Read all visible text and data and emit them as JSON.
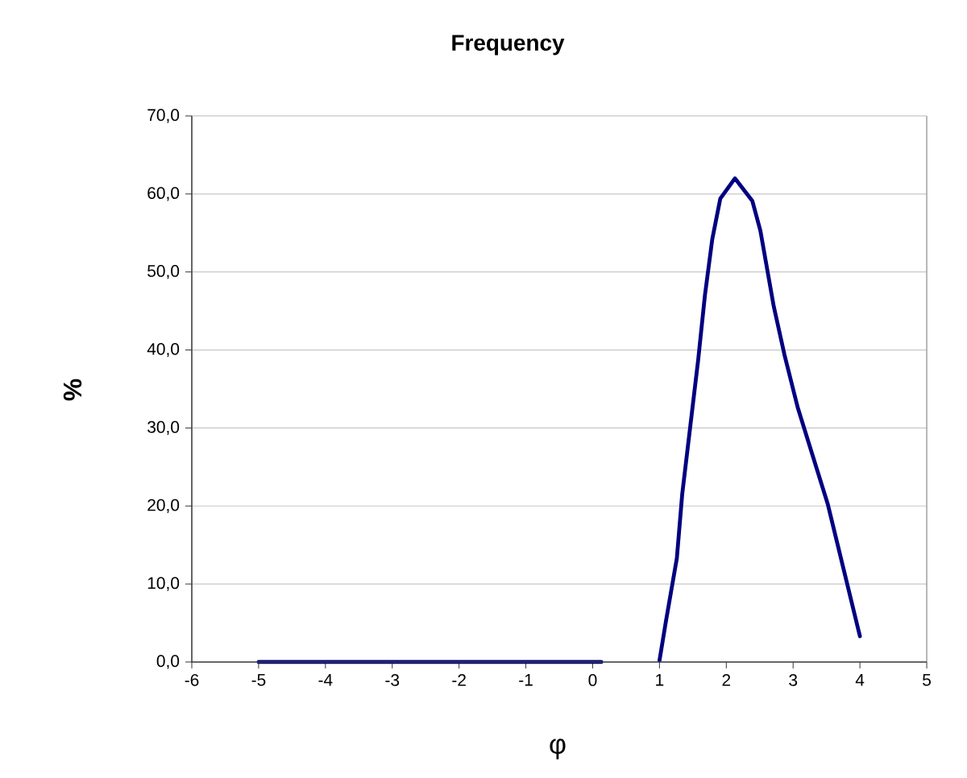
{
  "chart_data": {
    "type": "line",
    "title": "Frequency",
    "xlabel": "φ",
    "ylabel": "%",
    "x": [
      -5,
      -4,
      -3,
      -2,
      -1,
      0,
      0.13,
      null,
      1.0,
      1.1,
      1.26,
      1.34,
      1.58,
      1.68,
      1.79,
      1.91,
      2.13,
      2.39,
      2.51,
      2.71,
      2.87,
      3.07,
      3.52,
      4.0
    ],
    "series": [
      {
        "color": "#000080",
        "values": [
          0,
          0,
          0,
          0,
          0,
          0,
          0,
          null,
          0.2,
          5.4,
          13.3,
          21.5,
          38.8,
          47.0,
          54.2,
          59.4,
          62.0,
          59.1,
          55.3,
          45.6,
          39.4,
          32.6,
          20.2,
          3.3
        ]
      }
    ],
    "xlim": [
      -6,
      5
    ],
    "xticks": [
      -6,
      -5,
      -4,
      -3,
      -2,
      -1,
      0,
      1,
      2,
      3,
      4,
      5
    ],
    "ylim": [
      0,
      70
    ],
    "yticks": [
      {
        "value": 0,
        "label": "0,0"
      },
      {
        "value": 10,
        "label": "10,0"
      },
      {
        "value": 20,
        "label": "20,0"
      },
      {
        "value": 30,
        "label": "30,0"
      },
      {
        "value": 40,
        "label": "40,0"
      },
      {
        "value": 50,
        "label": "50,0"
      },
      {
        "value": 60,
        "label": "60,0"
      },
      {
        "value": 70,
        "label": "70,0"
      }
    ],
    "grid": "y",
    "marker": "none",
    "line_style": "solid"
  }
}
